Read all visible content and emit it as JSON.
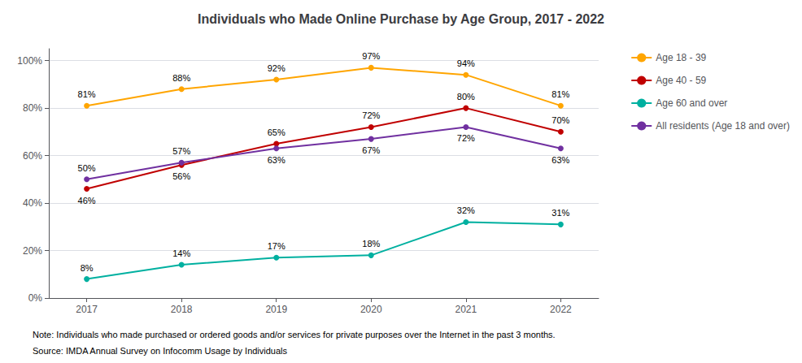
{
  "chart_data": {
    "type": "line",
    "title": "Individuals who Made Online Purchase by Age Group, 2017 - 2022",
    "x": [
      2017,
      2018,
      2019,
      2020,
      2021,
      2022
    ],
    "xlim": [
      2016.6,
      2022.4
    ],
    "xticks": [
      2017,
      2018,
      2019,
      2020,
      2021,
      2022
    ],
    "ylim": [
      0,
      105
    ],
    "yticks": [
      {
        "value": 0,
        "label": "0%"
      },
      {
        "value": 20,
        "label": "20%"
      },
      {
        "value": 40,
        "label": "40%"
      },
      {
        "value": 60,
        "label": "60%"
      },
      {
        "value": 80,
        "label": "80%"
      },
      {
        "value": 100,
        "label": "100%"
      }
    ],
    "grid": true,
    "legend": "right",
    "data_labels": true,
    "series": [
      {
        "name": "Age 18 - 39",
        "color": "#FFA500",
        "marker": "circle",
        "values": [
          81,
          88,
          92,
          97,
          94,
          81
        ],
        "value_labels": [
          "81%",
          "88%",
          "92%",
          "97%",
          "94%",
          "81%"
        ]
      },
      {
        "name": "Age 40 - 59",
        "color": "#C00000",
        "marker": "circle",
        "values": [
          46,
          56,
          65,
          72,
          80,
          70
        ],
        "value_labels": [
          "46%",
          "56%",
          "65%",
          "72%",
          "80%",
          "70%"
        ]
      },
      {
        "name": "Age 60 and over",
        "color": "#00B0A0",
        "marker": "circle",
        "values": [
          8,
          14,
          17,
          18,
          32,
          31
        ],
        "value_labels": [
          "8%",
          "14%",
          "17%",
          "18%",
          "32%",
          "31%"
        ]
      },
      {
        "name": "All residents (Age 18 and over)",
        "color": "#7030A0",
        "marker": "circle",
        "values": [
          50,
          57,
          63,
          67,
          72,
          63
        ],
        "value_labels": [
          "50%",
          "57%",
          "63%",
          "67%",
          "72%",
          "63%"
        ]
      }
    ],
    "annotations": [
      "Note: Individuals who made purchased or ordered goods and/or services for private purposes over the Internet in the past 3 months.",
      "Source: IMDA Annual Survey on Infocomm Usage by Individuals"
    ]
  }
}
